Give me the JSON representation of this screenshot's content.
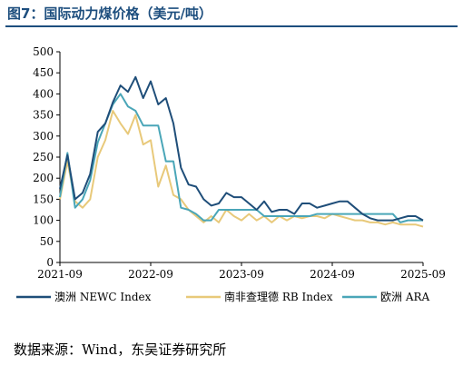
{
  "title": "图7：国际动力煤价格（美元/吨）",
  "source": "数据来源：Wind，东吴证券研究所",
  "chart_data": {
    "type": "line",
    "title": "图7：国际动力煤价格（美元/吨）",
    "xlabel": "",
    "ylabel": "",
    "ylim": [
      0,
      500
    ],
    "yticks": [
      0,
      50,
      100,
      150,
      200,
      250,
      300,
      350,
      400,
      450,
      500
    ],
    "xlim": [
      "2021-09",
      "2025-09"
    ],
    "xticks": [
      "2021-09",
      "2022-09",
      "2023-09",
      "2024-09",
      "2025-09"
    ],
    "grid": false,
    "legend_position": "bottom",
    "series": [
      {
        "name": "澳洲 NEWC Index",
        "color": "#1f4e79",
        "x": [
          "2021-09",
          "2021-10",
          "2021-11",
          "2021-12",
          "2022-01",
          "2022-02",
          "2022-03",
          "2022-04",
          "2022-05",
          "2022-06",
          "2022-07",
          "2022-08",
          "2022-09",
          "2022-10",
          "2022-11",
          "2022-12",
          "2023-01",
          "2023-02",
          "2023-03",
          "2023-04",
          "2023-05",
          "2023-06",
          "2023-07",
          "2023-08",
          "2023-09",
          "2023-10",
          "2023-11",
          "2023-12",
          "2024-01",
          "2024-02",
          "2024-03",
          "2024-04",
          "2024-05",
          "2024-06",
          "2024-07",
          "2024-08",
          "2024-09",
          "2024-10",
          "2024-11",
          "2024-12",
          "2025-01",
          "2025-02",
          "2025-03",
          "2025-04",
          "2025-05",
          "2025-06",
          "2025-07",
          "2025-08",
          "2025-09"
        ],
        "values": [
          175,
          255,
          150,
          165,
          210,
          310,
          330,
          380,
          420,
          405,
          440,
          390,
          430,
          375,
          390,
          330,
          225,
          185,
          180,
          150,
          135,
          140,
          165,
          155,
          155,
          140,
          125,
          145,
          120,
          125,
          125,
          115,
          140,
          140,
          130,
          135,
          140,
          145,
          145,
          130,
          115,
          105,
          100,
          100,
          100,
          105,
          110,
          110,
          100
        ]
      },
      {
        "name": "南非查理德 RB Index",
        "color": "#e8c97a",
        "x": [
          "2021-09",
          "2021-10",
          "2021-11",
          "2021-12",
          "2022-01",
          "2022-02",
          "2022-03",
          "2022-04",
          "2022-05",
          "2022-06",
          "2022-07",
          "2022-08",
          "2022-09",
          "2022-10",
          "2022-11",
          "2022-12",
          "2023-01",
          "2023-02",
          "2023-03",
          "2023-04",
          "2023-05",
          "2023-06",
          "2023-07",
          "2023-08",
          "2023-09",
          "2023-10",
          "2023-11",
          "2023-12",
          "2024-01",
          "2024-02",
          "2024-03",
          "2024-04",
          "2024-05",
          "2024-06",
          "2024-07",
          "2024-08",
          "2024-09",
          "2024-10",
          "2024-11",
          "2024-12",
          "2025-01",
          "2025-02",
          "2025-03",
          "2025-04",
          "2025-05",
          "2025-06",
          "2025-07",
          "2025-08",
          "2025-09"
        ],
        "values": [
          150,
          240,
          145,
          130,
          150,
          250,
          290,
          360,
          330,
          305,
          350,
          280,
          290,
          180,
          230,
          160,
          150,
          125,
          110,
          95,
          110,
          95,
          125,
          110,
          100,
          115,
          100,
          110,
          95,
          110,
          100,
          110,
          105,
          110,
          110,
          105,
          115,
          110,
          105,
          100,
          100,
          95,
          95,
          90,
          95,
          90,
          90,
          90,
          85
        ]
      },
      {
        "name": "欧洲 ARA",
        "color": "#4aa6b8",
        "x": [
          "2021-09",
          "2021-10",
          "2021-11",
          "2021-12",
          "2022-01",
          "2022-02",
          "2022-03",
          "2022-04",
          "2022-05",
          "2022-06",
          "2022-07",
          "2022-08",
          "2022-09",
          "2022-10",
          "2022-11",
          "2022-12",
          "2023-01",
          "2023-02",
          "2023-03",
          "2023-04",
          "2023-05",
          "2023-06",
          "2023-07",
          "2023-08",
          "2023-09",
          "2023-10",
          "2023-11",
          "2023-12",
          "2024-01",
          "2024-02",
          "2024-03",
          "2024-04",
          "2024-05",
          "2024-06",
          "2024-07",
          "2024-08",
          "2024-09",
          "2024-10",
          "2024-11",
          "2024-12",
          "2025-01",
          "2025-02",
          "2025-03",
          "2025-04",
          "2025-05",
          "2025-06",
          "2025-07",
          "2025-08",
          "2025-09"
        ],
        "values": [
          155,
          260,
          130,
          150,
          195,
          285,
          330,
          375,
          400,
          370,
          360,
          325,
          325,
          325,
          240,
          240,
          130,
          125,
          115,
          100,
          100,
          125,
          125,
          125,
          125,
          125,
          125,
          110,
          110,
          110,
          110,
          110,
          110,
          110,
          115,
          115,
          115,
          115,
          115,
          115,
          115,
          115,
          115,
          115,
          115,
          95,
          100,
          100,
          100
        ]
      }
    ]
  }
}
